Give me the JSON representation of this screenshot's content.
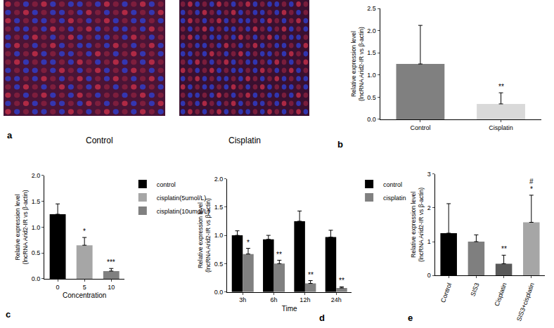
{
  "panel_a": {
    "letter": "a",
    "images": [
      {
        "label": "Control"
      },
      {
        "label": "Cisplatin"
      }
    ]
  },
  "chart_data": [
    {
      "letter": "b",
      "type": "bar",
      "categories": [
        "Control",
        "Cisplatin"
      ],
      "series": [
        {
          "values": [
            1.25,
            0.35
          ],
          "errors": [
            0.87,
            0.25
          ],
          "colors": [
            "#808080",
            "#d9d9d9"
          ]
        }
      ],
      "y_label": [
        "Relative expression level",
        "(lncRNA Arid2-IR vs β-actin)"
      ],
      "ylim": [
        0,
        2.5
      ],
      "yticks": [
        {
          "value": 0,
          "label": "0.0"
        },
        {
          "value": 0.5,
          "label": "0.5"
        },
        {
          "value": 1,
          "label": "1.0"
        },
        {
          "value": 1.5,
          "label": "1.5"
        },
        {
          "value": 2,
          "label": "2.0"
        },
        {
          "value": 2.5,
          "label": "2.5"
        }
      ],
      "annotations": [
        {
          "category": "Cisplatin",
          "text": "**"
        }
      ]
    },
    {
      "letter": "c",
      "type": "bar",
      "categories": [
        "0",
        "5",
        "10"
      ],
      "x_label": "Concentration",
      "series": [
        {
          "name": "control",
          "color": "#000000",
          "values": [
            1.25,
            null,
            null
          ],
          "errors": [
            0.2,
            null,
            null
          ]
        },
        {
          "name": "cisplatin(5umol/L)",
          "color": "#a6a6a6",
          "values": [
            null,
            0.65,
            null
          ],
          "errors": [
            null,
            0.15,
            null
          ]
        },
        {
          "name": "cisplatin(10umol/L)",
          "color": "#808080",
          "values": [
            null,
            null,
            0.15
          ],
          "errors": [
            null,
            null,
            0.05
          ]
        }
      ],
      "y_label": [
        "Relative expression level",
        "(lncRNA Arid2-IR vs β-actin)"
      ],
      "ylim": [
        0,
        2
      ],
      "yticks": [
        {
          "value": 0,
          "label": "0.0"
        },
        {
          "value": 0.5,
          "label": "0.5"
        },
        {
          "value": 1,
          "label": "1.0"
        },
        {
          "value": 1.5,
          "label": "1.5"
        },
        {
          "value": 2,
          "label": "2.0"
        }
      ],
      "legend": "top right",
      "annotations": [
        {
          "category": "5",
          "series": "cisplatin(5umol/L)",
          "text": "*"
        },
        {
          "category": "10",
          "series": "cisplatin(10umol/L)",
          "text": "***"
        }
      ]
    },
    {
      "letter": "d",
      "type": "bar",
      "categories": [
        "3h",
        "6h",
        "12h",
        "24h"
      ],
      "x_label": "Time",
      "series": [
        {
          "name": "control",
          "color": "#000000",
          "values": [
            1.0,
            0.93,
            1.25,
            0.97
          ],
          "errors": [
            0.08,
            0.07,
            0.18,
            0.12
          ]
        },
        {
          "name": "cisplatin",
          "color": "#808080",
          "values": [
            0.67,
            0.5,
            0.15,
            0.07
          ],
          "errors": [
            0.1,
            0.06,
            0.05,
            0.02
          ]
        }
      ],
      "y_label": [
        "Relative expression level",
        "(lncRNA Arid2-IR vs β-actin)"
      ],
      "ylim": [
        0,
        2
      ],
      "yticks": [
        {
          "value": 0,
          "label": "0.0"
        },
        {
          "value": 0.5,
          "label": "0.5"
        },
        {
          "value": 1,
          "label": "1.0"
        },
        {
          "value": 1.5,
          "label": "1.5"
        },
        {
          "value": 2,
          "label": "2.0"
        }
      ],
      "legend": "top right",
      "annotations": [
        {
          "category": "3h",
          "series": "cisplatin",
          "text": "*"
        },
        {
          "category": "6h",
          "series": "cisplatin",
          "text": "**"
        },
        {
          "category": "12h",
          "series": "cisplatin",
          "text": "**"
        },
        {
          "category": "24h",
          "series": "cisplatin",
          "text": "**"
        }
      ]
    },
    {
      "letter": "e",
      "type": "bar",
      "categories": [
        "Control",
        "SIS3",
        "Cisplatin",
        "SIS3+cisplatin"
      ],
      "series": [
        {
          "values": [
            1.25,
            1.0,
            0.35,
            1.57
          ],
          "errors": [
            0.87,
            0.2,
            0.25,
            0.8
          ],
          "colors": [
            "#000000",
            "#7f7f7f",
            "#595959",
            "#a6a6a6"
          ]
        }
      ],
      "y_label": [
        "Relative expression level",
        "(lncRNA Arid2-IR vs β-actin)"
      ],
      "ylim": [
        0,
        3
      ],
      "yticks": [
        0,
        1,
        2,
        3
      ],
      "annotations": [
        {
          "category": "Cisplatin",
          "text": "**"
        },
        {
          "category": "SIS3+cisplatin",
          "text": "*"
        },
        {
          "category": "SIS3+cisplatin",
          "text": "#"
        }
      ]
    }
  ]
}
